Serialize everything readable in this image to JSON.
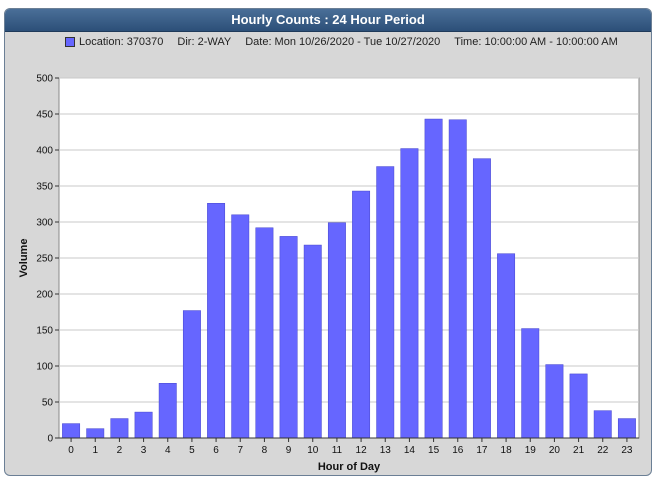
{
  "window": {
    "title": "Hourly Counts : 24 Hour Period"
  },
  "legend": {
    "location": "Location: 370370",
    "dir": "Dir: 2-WAY",
    "date": "Date: Mon 10/26/2020 - Tue 10/27/2020",
    "time": "Time: 10:00:00 AM - 10:00:00 AM"
  },
  "colors": {
    "bar": "#6666ff",
    "bar_stroke": "#4444cc",
    "plot_bg": "#ffffff",
    "grid": "#c8c8c8"
  },
  "chart_data": {
    "type": "bar",
    "categories": [
      "0",
      "1",
      "2",
      "3",
      "4",
      "5",
      "6",
      "7",
      "8",
      "9",
      "10",
      "11",
      "12",
      "13",
      "14",
      "15",
      "16",
      "17",
      "18",
      "19",
      "20",
      "21",
      "22",
      "23"
    ],
    "values": [
      20,
      13,
      27,
      36,
      76,
      177,
      326,
      310,
      292,
      280,
      268,
      299,
      343,
      377,
      402,
      443,
      442,
      388,
      256,
      152,
      102,
      89,
      38,
      27
    ],
    "xlabel": "Hour of Day",
    "ylabel": "Volume",
    "ylim": [
      0,
      500
    ],
    "yticks": [
      0,
      50,
      100,
      150,
      200,
      250,
      300,
      350,
      400,
      450,
      500
    ],
    "grid": true
  }
}
